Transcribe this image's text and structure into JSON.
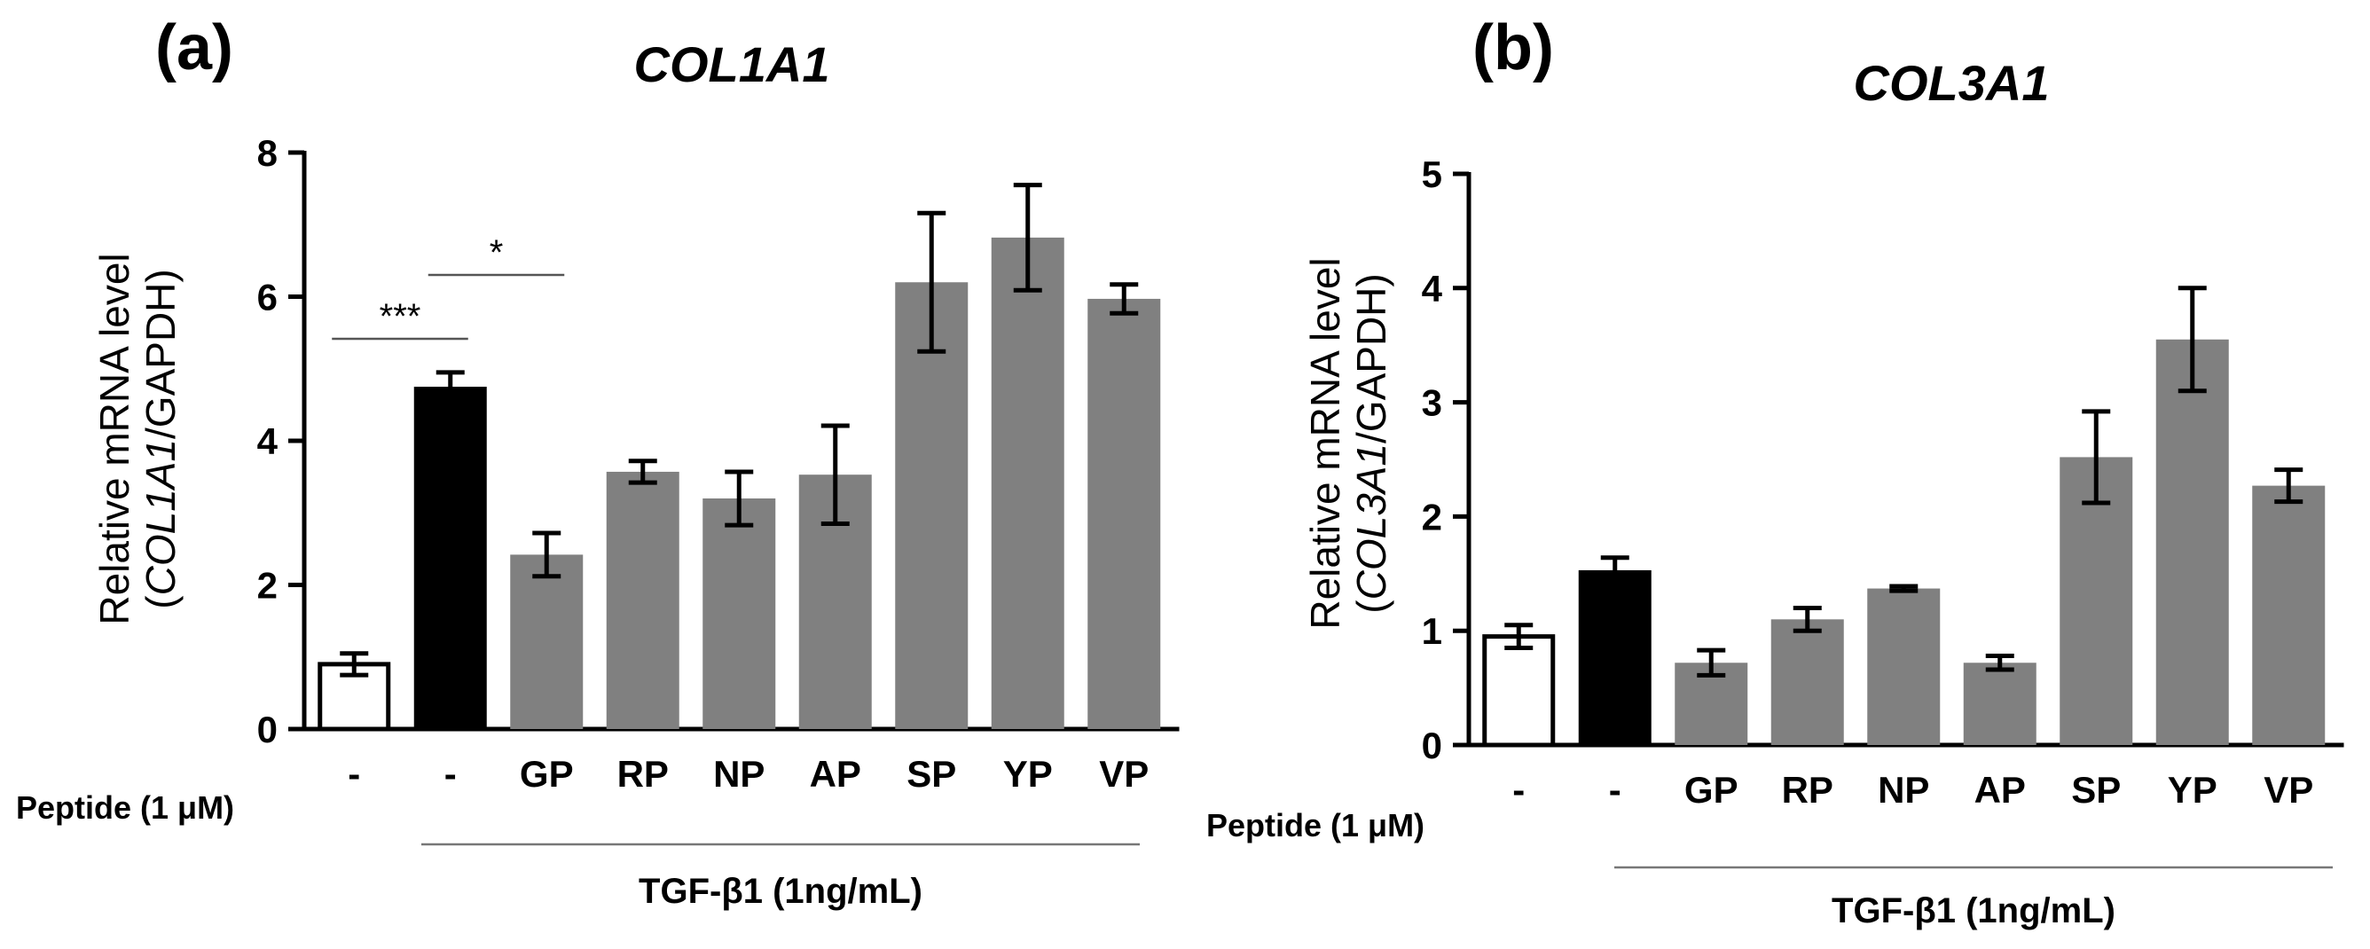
{
  "chart_data": [
    {
      "type": "bar",
      "panel_label": "(a)",
      "title": "COL1A1",
      "ylabel_line1": "Relative mRNA level",
      "ylabel_gene": "COL1A1",
      "ylabel_rest": "/GAPDH)",
      "ylim": [
        0,
        8
      ],
      "yticks": [
        0,
        2,
        4,
        6,
        8
      ],
      "categories": [
        "-",
        "-",
        "GP",
        "RP",
        "NP",
        "AP",
        "SP",
        "YP",
        "VP"
      ],
      "values": [
        0.9,
        4.75,
        2.42,
        3.57,
        3.2,
        3.53,
        6.2,
        6.82,
        5.97
      ],
      "errors": [
        0.15,
        0.2,
        0.3,
        0.15,
        0.37,
        0.68,
        0.96,
        0.73,
        0.2
      ],
      "bar_colors": [
        "#ffffff",
        "#000000",
        "#808080",
        "#808080",
        "#808080",
        "#808080",
        "#808080",
        "#808080",
        "#808080"
      ],
      "peptide_label": "Peptide (1 μM)",
      "treatment_label": "TGF-β1 (1ng/mL)",
      "significance": [
        {
          "from": 0,
          "to": 1,
          "label": "***"
        },
        {
          "from": 1,
          "to": 2,
          "label": "*"
        }
      ]
    },
    {
      "type": "bar",
      "panel_label": "(b)",
      "title": "COL3A1",
      "ylabel_line1": "Relative mRNA level",
      "ylabel_gene": "COL3A1",
      "ylabel_rest": "/GAPDH)",
      "ylim": [
        0,
        5
      ],
      "yticks": [
        0,
        1,
        2,
        3,
        4,
        5
      ],
      "categories": [
        "-",
        "-",
        "GP",
        "RP",
        "NP",
        "AP",
        "SP",
        "YP",
        "VP"
      ],
      "values": [
        0.95,
        1.53,
        0.72,
        1.1,
        1.37,
        0.72,
        2.52,
        3.55,
        2.27
      ],
      "errors": [
        0.1,
        0.11,
        0.11,
        0.1,
        0.02,
        0.06,
        0.4,
        0.45,
        0.14
      ],
      "bar_colors": [
        "#ffffff",
        "#000000",
        "#808080",
        "#808080",
        "#808080",
        "#808080",
        "#808080",
        "#808080",
        "#808080"
      ],
      "peptide_label": "Peptide (1 μM)",
      "treatment_label": "TGF-β1 (1ng/mL)",
      "significance": []
    }
  ]
}
